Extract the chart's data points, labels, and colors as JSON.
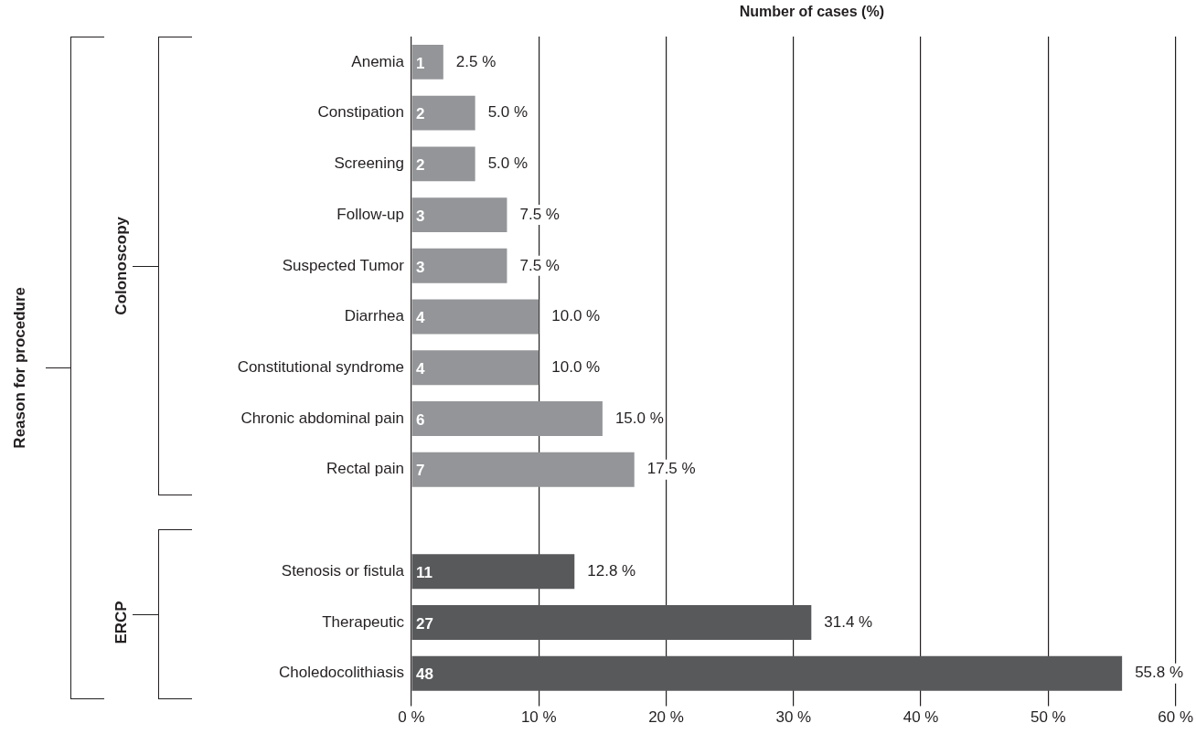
{
  "chart_data": {
    "type": "bar",
    "orientation": "horizontal",
    "xlabel": "Number of cases (%)",
    "categories": [
      "Anemia",
      "Constipation",
      "Screening",
      "Follow-up",
      "Suspected Tumor",
      "Diarrhea",
      "Constitutional syndrome",
      "Chronic abdominal pain",
      "Rectal pain",
      null,
      "Stenosis or fistula",
      "Therapeutic",
      "Choledocolithiasis"
    ],
    "series": [
      {
        "values": [
          2.5,
          5.0,
          5.0,
          7.5,
          7.5,
          10.0,
          10.0,
          15.0,
          17.5,
          null,
          12.8,
          31.4,
          55.8
        ],
        "colors": [
          "#939598",
          "#939598",
          "#939598",
          "#939598",
          "#939598",
          "#939598",
          "#939598",
          "#939598",
          "#939598",
          "#939598",
          "#58595b",
          "#58595b",
          "#58595b"
        ],
        "value_labels": [
          "2.5 %",
          "5.0 %",
          "5.0 %",
          "7.5 %",
          "7.5 %",
          "10.0 %",
          "10.0 %",
          "15.0 %",
          "17.5 %",
          null,
          "12.8 %",
          "31.4 %",
          "55.8 %"
        ]
      }
    ],
    "xlim": [
      0,
      60
    ],
    "xticks": [
      {
        "value": 0,
        "label": "0 %"
      },
      {
        "value": 10,
        "label": "10 %"
      },
      {
        "value": 20,
        "label": "20 %"
      },
      {
        "value": 30,
        "label": "30 %"
      },
      {
        "value": 40,
        "label": "40 %"
      },
      {
        "value": 50,
        "label": "50 %"
      },
      {
        "value": 60,
        "label": "60 %"
      }
    ],
    "grid": "x",
    "legend": false,
    "annotations": [
      "Colonoscopy",
      "ERCP",
      "Reason for procedure",
      {
        "text": "1",
        "y": "Anemia"
      },
      {
        "text": "2",
        "y": "Constipation"
      },
      {
        "text": "2",
        "y": "Screening"
      },
      {
        "text": "3",
        "y": "Follow-up"
      },
      {
        "text": "3",
        "y": "Suspected Tumor"
      },
      {
        "text": "4",
        "y": "Diarrhea"
      },
      {
        "text": "4",
        "y": "Constitutional syndrome"
      },
      {
        "text": "6",
        "y": "Chronic abdominal pain"
      },
      {
        "text": "7",
        "y": "Rectal pain"
      },
      {
        "text": "11",
        "y": "Stenosis or fistula"
      },
      {
        "text": "27",
        "y": "Therapeutic"
      },
      {
        "text": "48",
        "y": "Choledocolithiasis"
      }
    ]
  }
}
